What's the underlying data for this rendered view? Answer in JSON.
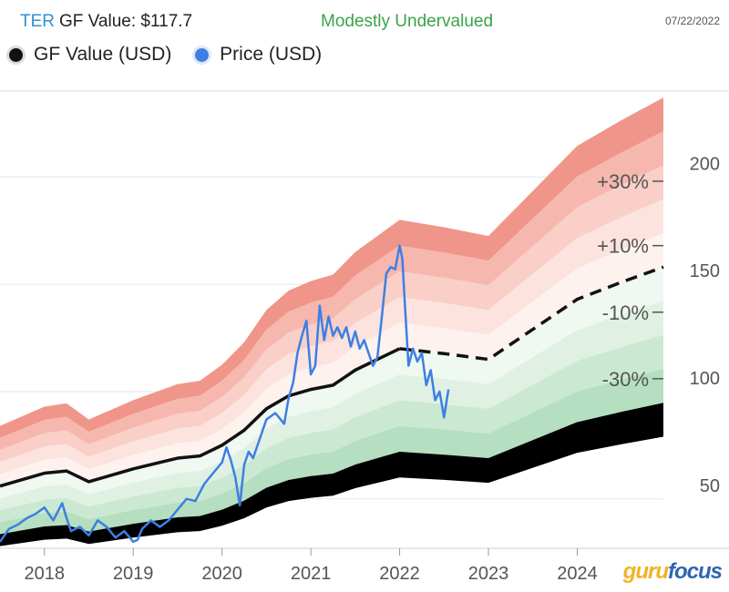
{
  "header": {
    "ticker": "TER",
    "gf_value_label": "GF Value: $117.7",
    "status": "Modestly Undervalued",
    "date": "07/22/2022"
  },
  "legend": [
    {
      "label": "GF Value (USD)",
      "color": "#111111"
    },
    {
      "label": "Price (USD)",
      "color": "#3d7fe3"
    }
  ],
  "logo": {
    "part1": "guru",
    "part2": "focus"
  },
  "colors": {
    "gf_line": "#111111",
    "price_line": "#3d7fe3",
    "red_bands": [
      "#f0958a",
      "#f6b7ae",
      "#f9cfc8",
      "#fce3de",
      "#fef2ef"
    ],
    "green_bands": [
      "#f0f8f2",
      "#e0f1e4",
      "#cbe9d2",
      "#b5dfc0"
    ]
  },
  "chart_data": {
    "type": "line",
    "title": "TER GF Value: $117.7",
    "xlabel": "",
    "ylabel": "",
    "xlim": [
      2017.5,
      2024.97
    ],
    "ylim": [
      27,
      240
    ],
    "x_ticks": [
      2018,
      2019,
      2020,
      2021,
      2022,
      2023,
      2024
    ],
    "y_ticks": [
      50,
      100,
      150,
      200
    ],
    "band_labels": [
      {
        "label": "+30%",
        "value": 198
      },
      {
        "label": "+10%",
        "value": 168
      },
      {
        "label": "-10%",
        "value": 137
      },
      {
        "label": "-30%",
        "value": 106
      }
    ],
    "band_multipliers": [
      1.5,
      1.4,
      1.3,
      1.2,
      1.1,
      1.0,
      0.9,
      0.8,
      0.7,
      0.6,
      0.5
    ],
    "series": [
      {
        "name": "GF Value (USD)",
        "x": [
          2017.5,
          2018.0,
          2018.25,
          2018.5,
          2019.0,
          2019.5,
          2019.75,
          2020.0,
          2020.25,
          2020.5,
          2020.75,
          2021.0,
          2021.25,
          2021.5,
          2021.75,
          2022.0,
          2022.5,
          2023.0,
          2024.0,
          2024.5,
          2024.97
        ],
        "values": [
          56,
          62,
          63,
          58,
          64,
          69,
          70,
          75,
          82,
          92,
          98,
          101,
          103,
          110,
          115,
          120,
          117.7,
          115,
          143,
          151,
          158
        ],
        "projected_from": 2022.0
      },
      {
        "name": "Price (USD)",
        "x": [
          2017.5,
          2017.6,
          2017.7,
          2017.8,
          2017.9,
          2018.0,
          2018.1,
          2018.2,
          2018.25,
          2018.3,
          2018.4,
          2018.5,
          2018.6,
          2018.7,
          2018.8,
          2018.9,
          2019.0,
          2019.05,
          2019.1,
          2019.2,
          2019.3,
          2019.4,
          2019.5,
          2019.6,
          2019.7,
          2019.8,
          2019.9,
          2020.0,
          2020.05,
          2020.1,
          2020.15,
          2020.2,
          2020.25,
          2020.3,
          2020.35,
          2020.4,
          2020.5,
          2020.6,
          2020.7,
          2020.75,
          2020.8,
          2020.85,
          2020.9,
          2020.95,
          2021.0,
          2021.05,
          2021.1,
          2021.15,
          2021.2,
          2021.25,
          2021.3,
          2021.35,
          2021.4,
          2021.45,
          2021.5,
          2021.55,
          2021.6,
          2021.65,
          2021.7,
          2021.75,
          2021.8,
          2021.85,
          2021.9,
          2021.95,
          2022.0,
          2022.03,
          2022.06,
          2022.1,
          2022.15,
          2022.2,
          2022.25,
          2022.3,
          2022.35,
          2022.4,
          2022.45,
          2022.5,
          2022.55
        ],
        "values": [
          30,
          36,
          38,
          41,
          43,
          46,
          40,
          48,
          41,
          35,
          37,
          33,
          40,
          37,
          32,
          35,
          30,
          31,
          36,
          40,
          37,
          40,
          45,
          50,
          49,
          57,
          62,
          67,
          74,
          68,
          60,
          47,
          66,
          72,
          69,
          75,
          87,
          90,
          85,
          97,
          104,
          118,
          126,
          133,
          108,
          112,
          140,
          124,
          135,
          126,
          130,
          125,
          130,
          121,
          128,
          120,
          124,
          118,
          112,
          116,
          135,
          155,
          158,
          157,
          168,
          162,
          140,
          112,
          120,
          114,
          118,
          103,
          110,
          96,
          100,
          88,
          101
        ]
      }
    ]
  }
}
